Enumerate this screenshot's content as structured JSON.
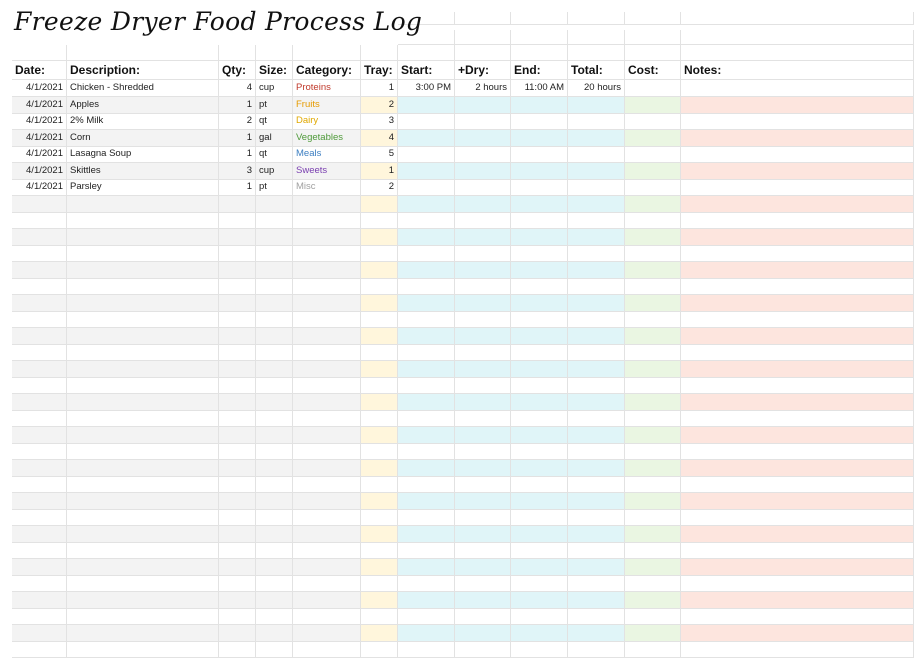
{
  "title": "Freeze Dryer Food Process Log",
  "columns": [
    "Date:",
    "Description:",
    "Qty:",
    "Size:",
    "Category:",
    "Tray:",
    "Start:",
    "+Dry:",
    "End:",
    "Total:",
    "Cost:",
    "Notes:"
  ],
  "rows": [
    {
      "date": "4/1/2021",
      "description": "Chicken - Shredded",
      "qty": "4",
      "size": "cup",
      "category": "Proteins",
      "tray": "1",
      "start": "3:00 PM",
      "dry": "2 hours",
      "end": "11:00 AM",
      "total": "20 hours",
      "cost": "",
      "notes": ""
    },
    {
      "date": "4/1/2021",
      "description": "Apples",
      "qty": "1",
      "size": "pt",
      "category": "Fruits",
      "tray": "2",
      "start": "",
      "dry": "",
      "end": "",
      "total": "",
      "cost": "",
      "notes": ""
    },
    {
      "date": "4/1/2021",
      "description": "2% Milk",
      "qty": "2",
      "size": "qt",
      "category": "Dairy",
      "tray": "3",
      "start": "",
      "dry": "",
      "end": "",
      "total": "",
      "cost": "",
      "notes": ""
    },
    {
      "date": "4/1/2021",
      "description": "Corn",
      "qty": "1",
      "size": "gal",
      "category": "Vegetables",
      "tray": "4",
      "start": "",
      "dry": "",
      "end": "",
      "total": "",
      "cost": "",
      "notes": ""
    },
    {
      "date": "4/1/2021",
      "description": "Lasagna Soup",
      "qty": "1",
      "size": "qt",
      "category": "Meals",
      "tray": "5",
      "start": "",
      "dry": "",
      "end": "",
      "total": "",
      "cost": "",
      "notes": ""
    },
    {
      "date": "4/1/2021",
      "description": "Skittles",
      "qty": "3",
      "size": "cup",
      "category": "Sweets",
      "tray": "1",
      "start": "",
      "dry": "",
      "end": "",
      "total": "",
      "cost": "",
      "notes": ""
    },
    {
      "date": "4/1/2021",
      "description": "Parsley",
      "qty": "1",
      "size": "pt",
      "category": "Misc",
      "tray": "2",
      "start": "",
      "dry": "",
      "end": "",
      "total": "",
      "cost": "",
      "notes": ""
    }
  ],
  "category_colors": {
    "Proteins": "#c0392b",
    "Fruits": "#e69b00",
    "Dairy": "#e0a800",
    "Vegetables": "#4f9a3a",
    "Meals": "#3d7fc2",
    "Sweets": "#7a3fb0",
    "Misc": "#a0a0a0"
  },
  "band_colors": {
    "gray": "#f3f3f3",
    "tray": "#fff6dc",
    "time": "#e0f5f8",
    "cost": "#eaf6e2",
    "notes": "#fde5de"
  }
}
